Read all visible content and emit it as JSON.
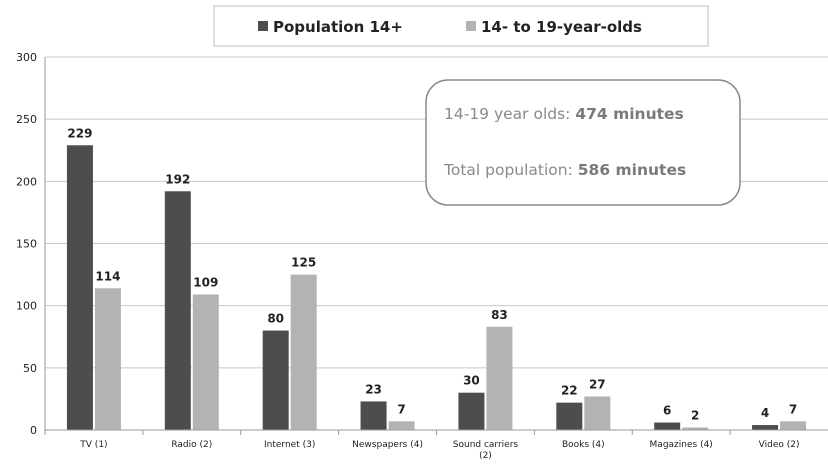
{
  "chart_data": {
    "type": "bar",
    "title": "",
    "xlabel": "",
    "ylabel": "",
    "ylim": [
      0,
      300
    ],
    "yticks": [
      0,
      50,
      100,
      150,
      200,
      250,
      300
    ],
    "grid": true,
    "legend_position": "top",
    "categories": [
      [
        "TV (1)"
      ],
      [
        "Radio (2)"
      ],
      [
        "Internet (3)"
      ],
      [
        "Newspapers (4)"
      ],
      [
        "Sound carriers",
        "(2)"
      ],
      [
        "Books (4)"
      ],
      [
        "Magazines (4)"
      ],
      [
        "Video (2)"
      ]
    ],
    "series": [
      {
        "name": "Population 14+",
        "color": "#4d4d4d",
        "values": [
          229,
          192,
          80,
          23,
          30,
          22,
          6,
          4
        ]
      },
      {
        "name": "14- to 19-year-olds",
        "color": "#b3b3b3",
        "values": [
          114,
          109,
          125,
          7,
          83,
          27,
          2,
          7
        ]
      }
    ],
    "annotation": {
      "line1_label": "14-19 year olds: ",
      "line1_value": "474 minutes",
      "line2_label": "Total population: ",
      "line2_value": "586 minutes"
    }
  }
}
